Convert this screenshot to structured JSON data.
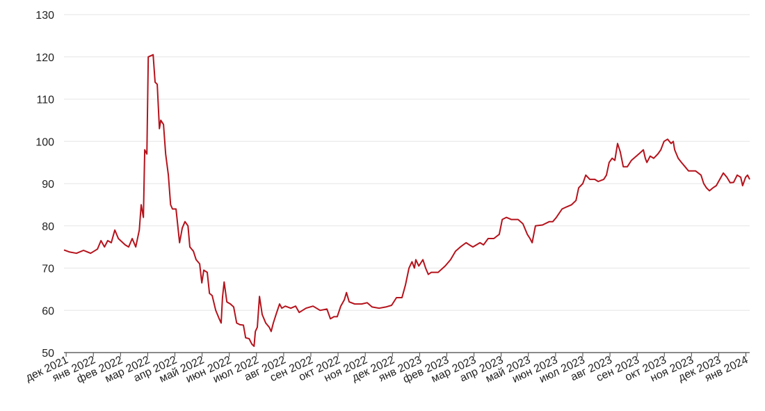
{
  "chart_data": {
    "type": "line",
    "x": [
      -0.08,
      0.13,
      0.38,
      0.64,
      0.9,
      1.15,
      1.28,
      1.41,
      1.53,
      1.66,
      1.79,
      1.92,
      2.17,
      2.3,
      2.43,
      2.56,
      2.69,
      2.76,
      2.84,
      2.89,
      2.97,
      3.02,
      3.2,
      3.27,
      3.35,
      3.43,
      3.48,
      3.58,
      3.66,
      3.76,
      3.84,
      3.91,
      4.04,
      4.17,
      4.27,
      4.37,
      4.48,
      4.55,
      4.68,
      4.78,
      4.91,
      4.99,
      5.06,
      5.19,
      5.27,
      5.37,
      5.5,
      5.63,
      5.7,
      5.75,
      5.81,
      5.91,
      6.04,
      6.16,
      6.27,
      6.39,
      6.52,
      6.6,
      6.73,
      6.83,
      6.91,
      6.96,
      7.03,
      7.11,
      7.21,
      7.34,
      7.47,
      7.54,
      7.62,
      7.72,
      7.85,
      7.93,
      8.06,
      8.26,
      8.44,
      8.57,
      8.82,
      9.08,
      9.34,
      9.59,
      9.72,
      9.85,
      9.97,
      10.1,
      10.23,
      10.31,
      10.41,
      10.61,
      10.87,
      11.07,
      11.25,
      11.51,
      11.76,
      11.97,
      12.15,
      12.35,
      12.48,
      12.61,
      12.72,
      12.81,
      12.86,
      12.97,
      13.12,
      13.22,
      13.32,
      13.43,
      13.68,
      13.94,
      14.14,
      14.32,
      14.5,
      14.71,
      14.83,
      14.96,
      15.22,
      15.35,
      15.52,
      15.73,
      15.93,
      16.04,
      16.19,
      16.37,
      16.62,
      16.8,
      16.96,
      17.06,
      17.14,
      17.26,
      17.52,
      17.77,
      17.9,
      18.03,
      18.24,
      18.41,
      18.59,
      18.75,
      18.85,
      19.0,
      19.11,
      19.26,
      19.44,
      19.57,
      19.77,
      19.87,
      19.97,
      20.08,
      20.18,
      20.28,
      20.38,
      20.49,
      20.64,
      20.79,
      20.97,
      21.15,
      21.23,
      21.3,
      21.36,
      21.48,
      21.61,
      21.76,
      21.87,
      21.99,
      22.12,
      22.25,
      22.33,
      22.38,
      22.51,
      22.63,
      22.76,
      22.89,
      23.15,
      23.35,
      23.45,
      23.55,
      23.66,
      23.79,
      23.91,
      24.04,
      24.17,
      24.3,
      24.42,
      24.55,
      24.68,
      24.81,
      24.88,
      24.99,
      25.06,
      25.14
    ],
    "series": [
      {
        "color": "#b5121b",
        "values": [
          74.3,
          73.8,
          73.5,
          74.2,
          73.5,
          74.5,
          76.5,
          75,
          76.5,
          76,
          79,
          77,
          75.5,
          75,
          77,
          75,
          79,
          85,
          82,
          98,
          97,
          120,
          120.5,
          114,
          113.5,
          103,
          105,
          104,
          97,
          92,
          85,
          84,
          84,
          76,
          79.5,
          81,
          80,
          75,
          74,
          72,
          71,
          66.5,
          69.5,
          69,
          64,
          63.5,
          60,
          58,
          57,
          63,
          66.7,
          62,
          61.5,
          60.8,
          57,
          56.6,
          56.5,
          53.5,
          53.3,
          52,
          51.5,
          55,
          56,
          63.3,
          59,
          57,
          56,
          55,
          57,
          59,
          61.5,
          60.5,
          61,
          60.5,
          61,
          59.5,
          60.5,
          61,
          60,
          60.3,
          58,
          58.5,
          58.5,
          61,
          62.5,
          64.2,
          62,
          61.5,
          61.5,
          61.8,
          60.8,
          60.5,
          60.8,
          61.2,
          63,
          63,
          66,
          70,
          71.5,
          70,
          72,
          70.5,
          72,
          70,
          68.5,
          69,
          69,
          70.5,
          72,
          74,
          75,
          76,
          75.5,
          75,
          76,
          75.5,
          77,
          77,
          78,
          81.5,
          82,
          81.5,
          81.5,
          80.5,
          78,
          77,
          76,
          80,
          80.2,
          81,
          81,
          82,
          84,
          84.5,
          85,
          86,
          89,
          90,
          92,
          91,
          91,
          90.5,
          91,
          92,
          95,
          96,
          95.5,
          99.5,
          97.5,
          94,
          94,
          95.5,
          96.5,
          97.5,
          98,
          96,
          95,
          96.5,
          96,
          97,
          98,
          100,
          100.5,
          99.5,
          100,
          98,
          96,
          95,
          94,
          93,
          93,
          92,
          90,
          89,
          88.3,
          89,
          89.5,
          91,
          92.5,
          91.5,
          90.2,
          90.3,
          92,
          91.5,
          89.5,
          91.5,
          92,
          91
        ]
      }
    ],
    "xlim": [
      -0.08,
      25.14
    ],
    "xticks": [
      {
        "value": 0,
        "label": "дек 2021"
      },
      {
        "value": 1,
        "label": "янв 2022"
      },
      {
        "value": 2,
        "label": "фев 2022"
      },
      {
        "value": 3,
        "label": "мар 2022"
      },
      {
        "value": 4,
        "label": "апр 2022"
      },
      {
        "value": 5,
        "label": "май 2022"
      },
      {
        "value": 6,
        "label": "июн 2022"
      },
      {
        "value": 7,
        "label": "июл 2022"
      },
      {
        "value": 8,
        "label": "авг 2022"
      },
      {
        "value": 9,
        "label": "сен 2022"
      },
      {
        "value": 10,
        "label": "окт 2022"
      },
      {
        "value": 11,
        "label": "ноя 2022"
      },
      {
        "value": 12,
        "label": "дек 2022"
      },
      {
        "value": 13,
        "label": "янв 2023"
      },
      {
        "value": 14,
        "label": "фев 2023"
      },
      {
        "value": 15,
        "label": "мар 2023"
      },
      {
        "value": 16,
        "label": "апр 2023"
      },
      {
        "value": 17,
        "label": "май 2023"
      },
      {
        "value": 18,
        "label": "июн 2023"
      },
      {
        "value": 19,
        "label": "июл 2023"
      },
      {
        "value": 20,
        "label": "авг 2023"
      },
      {
        "value": 21,
        "label": "сен 2023"
      },
      {
        "value": 22,
        "label": "окт 2023"
      },
      {
        "value": 23,
        "label": "ноя 2023"
      },
      {
        "value": 24,
        "label": "дек 2023"
      },
      {
        "value": 25,
        "label": "янв 2024"
      }
    ],
    "ylim": [
      50,
      130
    ],
    "yticks": [
      50,
      60,
      70,
      80,
      90,
      100,
      110,
      120,
      130
    ],
    "grid": true
  }
}
